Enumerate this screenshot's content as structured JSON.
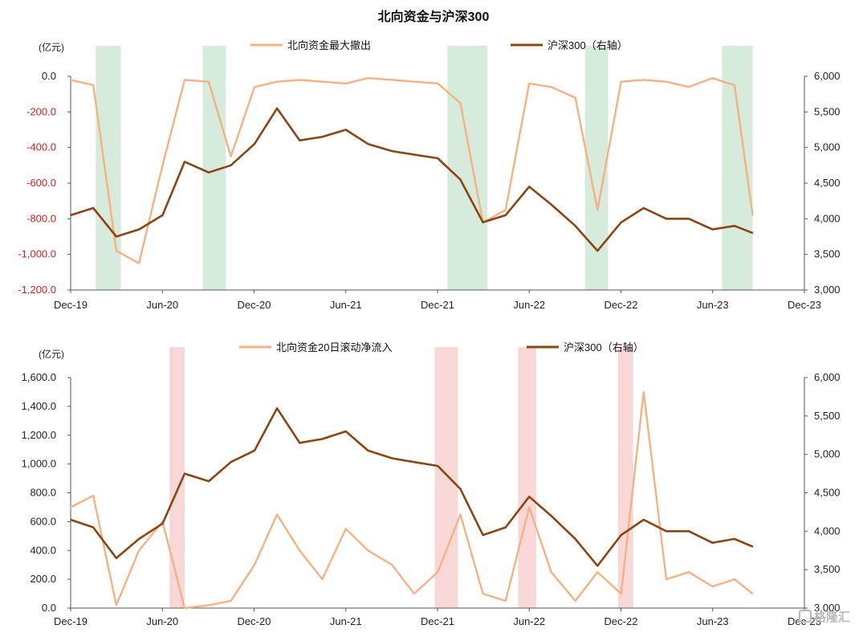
{
  "title": "北向资金与沪深300",
  "watermark": {
    "text": "格隆汇",
    "icon": "gelonghui-logo-icon"
  },
  "x_dates": [
    "2019-12-01",
    "2020-01-15",
    "2020-03-01",
    "2020-04-15",
    "2020-06-01",
    "2020-07-15",
    "2020-09-01",
    "2020-10-15",
    "2020-12-01",
    "2021-01-15",
    "2021-03-01",
    "2021-04-15",
    "2021-06-01",
    "2021-07-15",
    "2021-09-01",
    "2021-10-15",
    "2021-12-01",
    "2022-01-15",
    "2022-03-01",
    "2022-04-15",
    "2022-06-01",
    "2022-07-15",
    "2022-09-01",
    "2022-10-15",
    "2022-12-01",
    "2023-01-15",
    "2023-03-01",
    "2023-04-15",
    "2023-06-01",
    "2023-07-15",
    "2023-08-20"
  ],
  "chart_data": [
    {
      "type": "line",
      "unit_label": "(亿元)",
      "x_ticks": [
        "Dec-19",
        "Jun-20",
        "Dec-20",
        "Jun-21",
        "Dec-21",
        "Jun-22",
        "Dec-22",
        "Jun-23",
        "Dec-23"
      ],
      "y_left": {
        "min": -1200,
        "max": 0,
        "ticks": [
          "0.0",
          "-200.0",
          "-400.0",
          "-600.0",
          "-800.0",
          "-1,000.0",
          "-1,200.0"
        ],
        "color": "#d42020"
      },
      "y_right": {
        "min": 3000,
        "max": 6000,
        "ticks": [
          "6,000",
          "5,500",
          "5,000",
          "4,500",
          "4,000",
          "3,500",
          "3,000"
        ]
      },
      "highlight_color": "#cfe8d6",
      "highlights": [
        [
          "2020-01-20",
          "2020-03-10"
        ],
        [
          "2020-08-20",
          "2020-10-05"
        ],
        [
          "2021-12-20",
          "2022-03-10"
        ],
        [
          "2022-09-20",
          "2022-11-05"
        ],
        [
          "2023-06-20",
          "2023-08-20"
        ]
      ],
      "legend": [
        "北向资金最大撤出",
        "沪深300（右轴）"
      ],
      "series": [
        {
          "name": "北向资金最大撤出",
          "axis": "left",
          "color": "#f4b183",
          "values": [
            -20,
            -50,
            -980,
            -1050,
            -500,
            -20,
            -30,
            -450,
            -60,
            -30,
            -20,
            -30,
            -40,
            -10,
            -20,
            -30,
            -40,
            -150,
            -820,
            -750,
            -40,
            -60,
            -120,
            -750,
            -30,
            -20,
            -30,
            -60,
            -10,
            -50,
            -780
          ]
        },
        {
          "name": "沪深300（右轴）",
          "axis": "right",
          "color": "#8b4513",
          "values": [
            4050,
            4150,
            3750,
            3850,
            4050,
            4800,
            4650,
            4750,
            5050,
            5550,
            5100,
            5150,
            5250,
            5050,
            4950,
            4900,
            4850,
            4550,
            3950,
            4050,
            4450,
            4200,
            3900,
            3550,
            3950,
            4150,
            4000,
            4000,
            3850,
            3900,
            3800
          ]
        }
      ]
    },
    {
      "type": "line",
      "unit_label": "(亿元)",
      "x_ticks": [
        "Dec-19",
        "Jun-20",
        "Dec-20",
        "Jun-21",
        "Dec-21",
        "Jun-22",
        "Dec-22",
        "Jun-23",
        "Dec-23"
      ],
      "y_left": {
        "min": 0,
        "max": 1600,
        "ticks": [
          "1,600.0",
          "1,400.0",
          "1,200.0",
          "1,000.0",
          "800.0",
          "600.0",
          "400.0",
          "200.0",
          "0.0"
        ],
        "color": "#222222"
      },
      "y_right": {
        "min": 3000,
        "max": 6000,
        "ticks": [
          "6,000",
          "5,500",
          "5,000",
          "4,500",
          "4,000",
          "3,500",
          "3,000"
        ]
      },
      "highlight_color": "#f7d0d0",
      "highlights": [
        [
          "2020-06-15",
          "2020-07-15"
        ],
        [
          "2021-11-25",
          "2022-01-10"
        ],
        [
          "2022-05-10",
          "2022-06-15"
        ],
        [
          "2022-11-25",
          "2022-12-25"
        ]
      ],
      "legend": [
        "北向资金20日滚动净流入",
        "沪深300（右轴）"
      ],
      "series": [
        {
          "name": "北向资金20日滚动净流入",
          "axis": "left",
          "color": "#f4b183",
          "values": [
            700,
            780,
            20,
            400,
            600,
            0,
            20,
            50,
            300,
            650,
            400,
            200,
            550,
            400,
            300,
            100,
            250,
            650,
            100,
            50,
            700,
            250,
            50,
            250,
            100,
            1500,
            200,
            250,
            150,
            200,
            100
          ]
        },
        {
          "name": "沪深300（右轴）",
          "axis": "right",
          "color": "#8b4513",
          "values": [
            4150,
            4050,
            3650,
            3900,
            4100,
            4750,
            4650,
            4900,
            5050,
            5600,
            5150,
            5200,
            5300,
            5050,
            4950,
            4900,
            4850,
            4550,
            3950,
            4050,
            4450,
            4200,
            3900,
            3550,
            3950,
            4150,
            4000,
            4000,
            3850,
            3900,
            3800
          ]
        }
      ]
    }
  ]
}
